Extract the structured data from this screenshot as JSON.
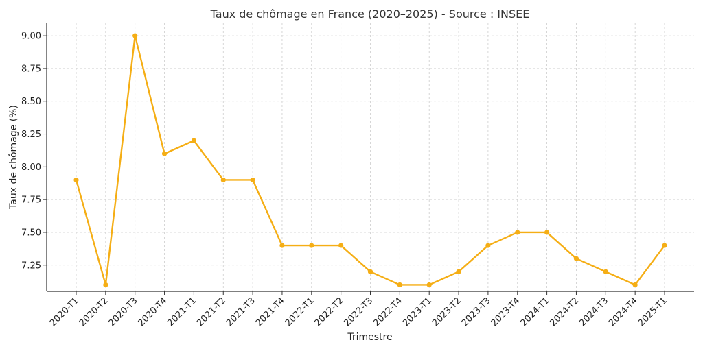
{
  "chart_data": {
    "type": "line",
    "title": "Taux de chômage en France (2020–2025) - Source : INSEE",
    "xlabel": "Trimestre",
    "ylabel": "Taux de chômage (%)",
    "categories": [
      "2020-T1",
      "2020-T2",
      "2020-T3",
      "2020-T4",
      "2021-T1",
      "2021-T2",
      "2021-T3",
      "2021-T4",
      "2022-T1",
      "2022-T2",
      "2022-T3",
      "2022-T4",
      "2023-T1",
      "2023-T2",
      "2023-T3",
      "2023-T4",
      "2024-T1",
      "2024-T2",
      "2024-T3",
      "2024-T4",
      "2025-T1"
    ],
    "series": [
      {
        "values": [
          7.9,
          7.1,
          9.0,
          8.1,
          8.2,
          7.9,
          7.9,
          7.4,
          7.4,
          7.4,
          7.2,
          7.1,
          7.1,
          7.2,
          7.4,
          7.5,
          7.5,
          7.3,
          7.2,
          7.1,
          7.4
        ],
        "color": "#f5ae15"
      }
    ],
    "ylim": [
      7.05,
      9.1
    ],
    "yticks": [
      "7.25",
      "7.50",
      "7.75",
      "8.00",
      "8.25",
      "8.50",
      "8.75",
      "9.00"
    ],
    "grid": true,
    "marker": "circle"
  }
}
